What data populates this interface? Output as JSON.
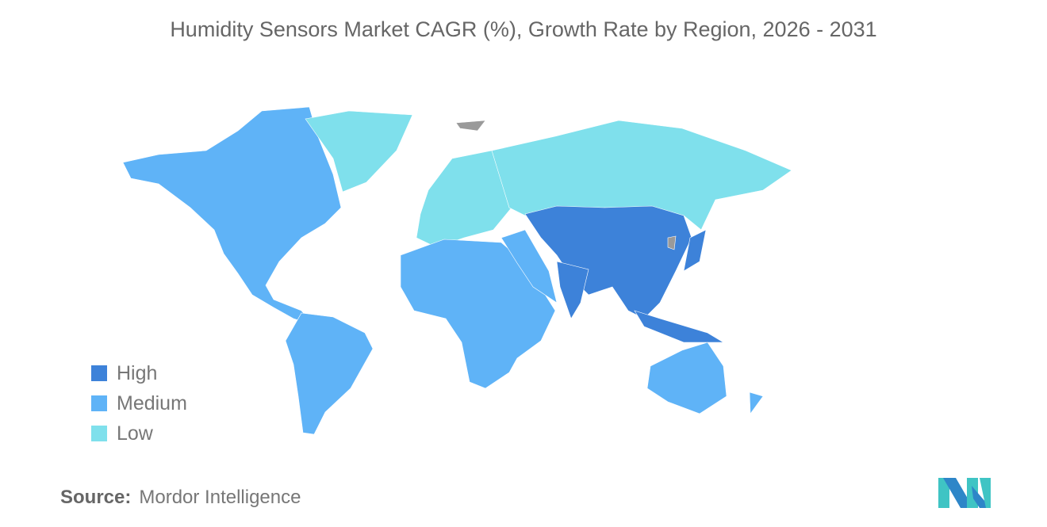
{
  "title": "Humidity Sensors Market CAGR (%), Growth Rate by Region, 2026 - 2031",
  "legend": [
    {
      "label": "High",
      "color": "#3d82d9"
    },
    {
      "label": "Medium",
      "color": "#5fb3f7"
    },
    {
      "label": "Low",
      "color": "#7fe0ec"
    }
  ],
  "no_data_color": "#9a9a9a",
  "regions": {
    "North America": "Medium",
    "South America": "Medium",
    "Europe": "Low",
    "Greenland": "Low",
    "Russia": "Low",
    "Middle East and Africa": "Medium",
    "Asia Pacific": "High",
    "Australia and New Zealand": "Medium"
  },
  "source": {
    "label": "Source:",
    "value": "Mordor Intelligence"
  }
}
